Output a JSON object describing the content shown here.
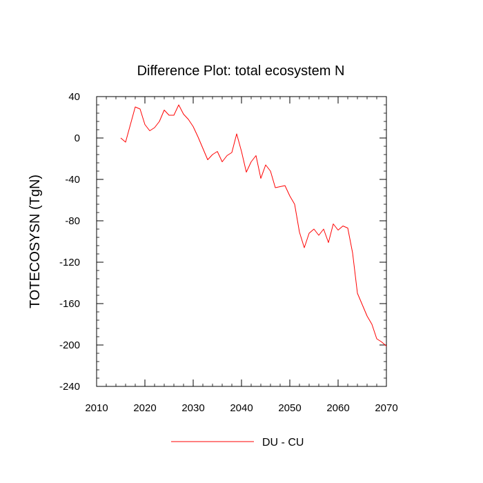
{
  "chart_data": {
    "type": "line",
    "title": "Difference Plot: total ecosystem N",
    "xlabel": "",
    "ylabel": "TOTECOSYSN  (TgN)",
    "xlim": [
      2010,
      2070
    ],
    "ylim": [
      -240,
      40
    ],
    "xticks": [
      2010,
      2020,
      2030,
      2040,
      2050,
      2060,
      2070
    ],
    "yticks": [
      40,
      0,
      -40,
      -80,
      -120,
      -160,
      -200,
      -240
    ],
    "x_tick_labels": [
      "2010",
      "2020",
      "2030",
      "2040",
      "2050",
      "2060",
      "2070"
    ],
    "y_tick_labels": [
      "40",
      "0",
      "-40",
      "-80",
      "-120",
      "-160",
      "-200",
      "-240"
    ],
    "grid": false,
    "legend_position": "bottom-center",
    "series": [
      {
        "name": "DU - CU",
        "color": "#ff0000",
        "x": [
          2015,
          2016,
          2017,
          2018,
          2019,
          2020,
          2021,
          2022,
          2023,
          2024,
          2025,
          2026,
          2027,
          2028,
          2029,
          2030,
          2031,
          2032,
          2033,
          2034,
          2035,
          2036,
          2037,
          2038,
          2039,
          2040,
          2041,
          2042,
          2043,
          2044,
          2045,
          2046,
          2047,
          2048,
          2049,
          2050,
          2051,
          2052,
          2053,
          2054,
          2055,
          2056,
          2057,
          2058,
          2059,
          2060,
          2061,
          2062,
          2063,
          2064,
          2065,
          2066,
          2067,
          2068,
          2069,
          2070
        ],
        "values": [
          0,
          -4,
          13,
          30,
          28,
          13,
          7,
          10,
          16,
          27,
          22,
          22,
          32,
          23,
          18,
          11,
          1,
          -10,
          -21,
          -16,
          -13,
          -23,
          -17,
          -14,
          4,
          -13,
          -33,
          -23,
          -17,
          -39,
          -26,
          -32,
          -48,
          -47,
          -46,
          -56,
          -64,
          -91,
          -106,
          -92,
          -88,
          -94,
          -88,
          -101,
          -83,
          -89,
          -85,
          -87,
          -111,
          -150,
          -161,
          -172,
          -180,
          -194,
          -197,
          -201
        ]
      }
    ]
  }
}
